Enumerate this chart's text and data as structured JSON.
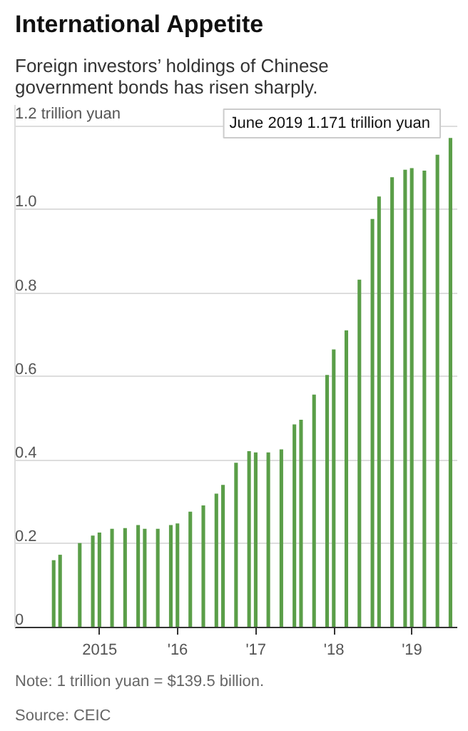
{
  "chart_data": {
    "type": "bar",
    "title": "International Appetite",
    "subtitle": "Foreign investors’ holdings of Chinese government bonds has risen sharply.",
    "x": [
      "2014-05-31",
      "2014-06-30",
      "2014-09-30",
      "2014-11-30",
      "2014-12-31",
      "2015-02-28",
      "2015-04-30",
      "2015-06-30",
      "2015-07-31",
      "2015-09-30",
      "2015-11-30",
      "2015-12-31",
      "2016-02-29",
      "2016-04-30",
      "2016-06-30",
      "2016-07-31",
      "2016-09-30",
      "2016-11-30",
      "2016-12-31",
      "2017-02-28",
      "2017-04-30",
      "2017-06-30",
      "2017-07-31",
      "2017-09-30",
      "2017-11-30",
      "2017-12-31",
      "2018-02-28",
      "2018-04-30",
      "2018-06-30",
      "2018-07-31",
      "2018-09-30",
      "2018-11-30",
      "2018-12-31",
      "2019-02-28",
      "2019-04-30",
      "2019-06-30"
    ],
    "values": [
      0.161,
      0.174,
      0.202,
      0.22,
      0.227,
      0.236,
      0.238,
      0.245,
      0.236,
      0.236,
      0.245,
      0.249,
      0.277,
      0.292,
      0.32,
      0.341,
      0.394,
      0.422,
      0.419,
      0.419,
      0.426,
      0.486,
      0.497,
      0.557,
      0.604,
      0.665,
      0.711,
      0.832,
      0.977,
      1.031,
      1.077,
      1.095,
      1.099,
      1.093,
      1.131,
      1.171
    ],
    "color": "#5a9e48",
    "xlim": [
      "2013-12-01",
      "2019-08-01"
    ],
    "xticks": [
      {
        "value": "2015-01-01",
        "label": "2015"
      },
      {
        "value": "2016-01-01",
        "label": "'16"
      },
      {
        "value": "2017-01-01",
        "label": "'17"
      },
      {
        "value": "2018-01-01",
        "label": "'18"
      },
      {
        "value": "2019-01-01",
        "label": "'19"
      }
    ],
    "ylim": [
      0,
      1.25
    ],
    "yticks": [
      0,
      0.2,
      0.4,
      0.6,
      0.8,
      {
        "value": 1.0,
        "label": "1.0"
      },
      {
        "value": 1.2,
        "label": "1.2 trillion yuan"
      }
    ],
    "grid": "y",
    "annotations": [
      "June 2019  1.171 trillion yuan",
      "Note: 1 trillion yuan = $139.5 billion.",
      "Source: CEIC"
    ]
  }
}
